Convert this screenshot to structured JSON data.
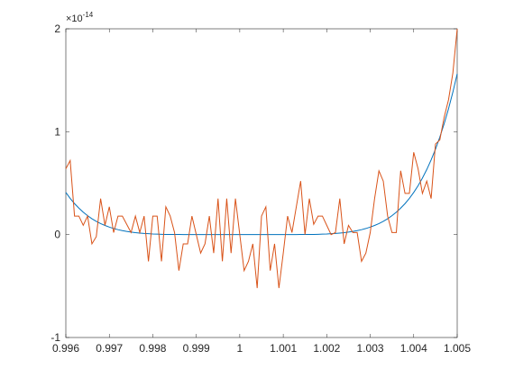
{
  "chart_data": {
    "type": "line",
    "y_exponent": {
      "base": "×10",
      "power": "-14"
    },
    "x": [
      0.996,
      0.9961,
      0.9962,
      0.9963,
      0.9964,
      0.9965,
      0.9966,
      0.9967,
      0.9968,
      0.9969,
      0.997,
      0.9971,
      0.9972,
      0.9973,
      0.9974,
      0.9975,
      0.9976,
      0.9977,
      0.9978,
      0.9979,
      0.998,
      0.9981,
      0.9982,
      0.9983,
      0.9984,
      0.9985,
      0.9986,
      0.9987,
      0.9988,
      0.9989,
      0.999,
      0.9991,
      0.9992,
      0.9993,
      0.9994,
      0.9995,
      0.9996,
      0.9997,
      0.9998,
      0.9999,
      1,
      1.0001,
      1.0002,
      1.0003,
      1.0004,
      1.0005,
      1.0006,
      1.0007,
      1.0008,
      1.0009,
      1.001,
      1.0011,
      1.0012,
      1.0013,
      1.0014,
      1.0015,
      1.0016,
      1.0017,
      1.0018,
      1.0019,
      1.002,
      1.0021,
      1.0022,
      1.0023,
      1.0024,
      1.0025,
      1.0026,
      1.0027,
      1.0028,
      1.0029,
      1.003,
      1.0031,
      1.0032,
      1.0033,
      1.0034,
      1.0035,
      1.0036,
      1.0037,
      1.0038,
      1.0039,
      1.004,
      1.0041,
      1.0042,
      1.0043,
      1.0044,
      1.0045,
      1.0046,
      1.0047,
      1.0048,
      1.0049,
      1.005
    ],
    "series": [
      {
        "color": "#0072BD",
        "values": [
          0.41,
          0.352,
          0.301,
          0.257,
          0.218,
          0.184,
          0.154,
          0.129,
          0.107,
          0.089,
          0.073,
          0.059,
          0.048,
          0.039,
          0.031,
          0.024,
          0.019,
          0.015,
          0.011,
          0.009,
          0.006,
          0.005,
          0.003,
          0.002,
          0.002,
          0.001,
          0.001,
          0,
          0,
          0,
          0,
          0,
          0,
          0,
          0,
          0,
          0,
          0,
          0,
          0,
          0,
          0,
          0,
          0,
          0,
          0,
          0,
          0,
          0,
          0,
          0,
          0,
          0,
          0,
          0.001,
          0.001,
          0.002,
          0.002,
          0.003,
          0.005,
          0.006,
          0.009,
          0.011,
          0.015,
          0.019,
          0.024,
          0.031,
          0.039,
          0.048,
          0.059,
          0.073,
          0.089,
          0.107,
          0.129,
          0.154,
          0.184,
          0.218,
          0.257,
          0.301,
          0.352,
          0.41,
          0.475,
          0.549,
          0.632,
          0.726,
          0.83,
          0.947,
          1.078,
          1.223,
          1.384,
          1.563
        ]
      },
      {
        "color": "#D95319",
        "values": [
          0.64,
          0.72,
          0.18,
          0.18,
          0.09,
          0.18,
          -0.09,
          -0.02,
          0.35,
          0.09,
          0.27,
          0.02,
          0.18,
          0.18,
          0.1,
          0.02,
          0.18,
          0.02,
          0.18,
          -0.26,
          0.18,
          0.18,
          -0.26,
          0.27,
          0.18,
          0.02,
          -0.35,
          -0.09,
          -0.09,
          0.18,
          0,
          -0.18,
          -0.09,
          0.18,
          -0.18,
          0.35,
          -0.26,
          0.35,
          -0.18,
          0.35,
          0,
          -0.35,
          -0.26,
          -0.09,
          -0.52,
          0.18,
          0.27,
          -0.35,
          -0.09,
          -0.52,
          -0.18,
          0.18,
          0.02,
          0.27,
          0.52,
          0,
          0.35,
          0.1,
          0.18,
          0.18,
          0.09,
          0,
          0.02,
          0.35,
          -0.09,
          0.09,
          0.02,
          0.02,
          -0.26,
          -0.18,
          0.02,
          0.35,
          0.62,
          0.52,
          0.18,
          0.02,
          0.02,
          0.62,
          0.4,
          0.4,
          0.8,
          0.64,
          0.4,
          0.52,
          0.35,
          0.88,
          0.92,
          1.14,
          1.31,
          1.57,
          2.0
        ]
      }
    ],
    "xlim": [
      0.996,
      1.005
    ],
    "xticks": [
      0.996,
      0.997,
      0.998,
      0.999,
      1,
      1.001,
      1.002,
      1.003,
      1.004,
      1.005
    ],
    "ylim": [
      -1,
      2
    ],
    "yticks": [
      -1,
      0,
      1,
      2
    ]
  }
}
